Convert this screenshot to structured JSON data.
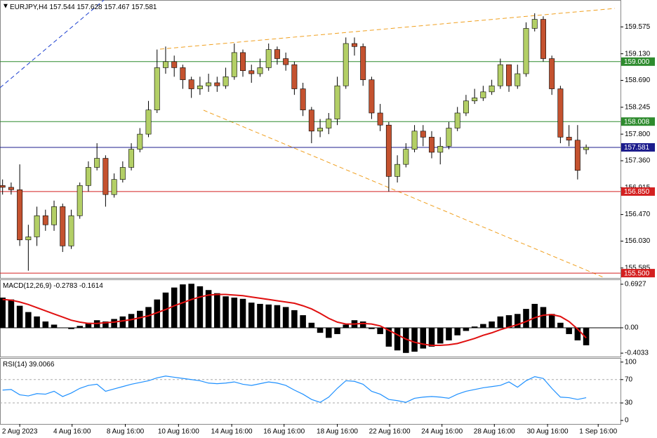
{
  "chart_data": [
    {
      "type": "candlestick",
      "symbol": "EURJPY,H4",
      "open": [
        156.95,
        156.92,
        156.88,
        156.05,
        156.1,
        156.45,
        156.3,
        156.6,
        155.95,
        156.45,
        156.95,
        157.25,
        157.4,
        156.8,
        157.05,
        157.25,
        157.55,
        157.8,
        158.2,
        158.9,
        159.0,
        158.9,
        158.7,
        158.55,
        158.6,
        158.65,
        158.6,
        158.75,
        159.15,
        158.85,
        158.8,
        158.9,
        159.2,
        159.05,
        158.95,
        158.55,
        158.2,
        157.85,
        157.9,
        158.05,
        158.6,
        159.3,
        159.25,
        158.7,
        158.15,
        157.95,
        157.1,
        157.3,
        157.55,
        157.85,
        157.75,
        157.5,
        157.6,
        157.9,
        158.15,
        158.35,
        158.4,
        158.5,
        158.6,
        158.95,
        158.6,
        158.8,
        159.55,
        159.7,
        159.05,
        158.55,
        157.75,
        157.7,
        157.544
      ],
      "high": [
        157.05,
        157.0,
        157.3,
        156.3,
        156.6,
        156.55,
        156.7,
        156.65,
        156.55,
        157.0,
        157.35,
        157.65,
        157.45,
        157.15,
        157.35,
        157.65,
        157.9,
        158.35,
        159.2,
        159.25,
        159.1,
        158.95,
        158.75,
        158.75,
        158.8,
        158.75,
        158.9,
        159.3,
        159.2,
        158.95,
        159.05,
        159.3,
        159.25,
        159.15,
        159.0,
        158.65,
        158.25,
        158.05,
        158.15,
        158.75,
        159.4,
        159.4,
        159.3,
        158.75,
        158.3,
        158.0,
        157.45,
        157.65,
        157.95,
        157.95,
        157.85,
        157.75,
        158.0,
        158.25,
        158.45,
        158.55,
        158.6,
        158.7,
        159.05,
        158.95,
        158.95,
        159.65,
        159.8,
        159.75,
        159.1,
        158.6,
        157.95,
        157.95,
        157.628
      ],
      "low": [
        156.8,
        156.8,
        155.95,
        155.54,
        155.95,
        156.2,
        156.2,
        155.85,
        155.9,
        156.4,
        156.85,
        157.2,
        156.6,
        156.75,
        157.0,
        157.2,
        157.5,
        157.75,
        158.15,
        158.8,
        158.75,
        158.55,
        158.4,
        158.45,
        158.5,
        158.5,
        158.55,
        158.7,
        158.75,
        158.65,
        158.75,
        158.85,
        158.95,
        158.85,
        158.45,
        158.1,
        157.65,
        157.75,
        157.8,
        157.95,
        158.55,
        159.1,
        158.6,
        158.05,
        157.85,
        156.85,
        157.0,
        157.25,
        157.5,
        157.6,
        157.4,
        157.3,
        157.55,
        157.85,
        158.1,
        158.3,
        158.35,
        158.45,
        158.55,
        158.5,
        158.55,
        158.75,
        159.5,
        159.0,
        158.45,
        157.65,
        157.6,
        157.05,
        157.467
      ],
      "close": [
        156.92,
        156.88,
        156.05,
        156.1,
        156.45,
        156.3,
        156.6,
        155.95,
        156.45,
        156.95,
        157.25,
        157.4,
        156.8,
        157.05,
        157.25,
        157.55,
        157.8,
        158.2,
        158.9,
        159.0,
        158.9,
        158.7,
        158.55,
        158.6,
        158.65,
        158.6,
        158.75,
        159.15,
        158.85,
        158.8,
        158.9,
        159.2,
        159.05,
        158.95,
        158.55,
        158.2,
        157.85,
        157.9,
        158.05,
        158.6,
        159.3,
        159.25,
        158.7,
        158.15,
        157.95,
        157.1,
        157.3,
        157.55,
        157.85,
        157.75,
        157.5,
        157.6,
        157.9,
        158.15,
        158.35,
        158.4,
        158.5,
        158.6,
        158.95,
        158.6,
        158.8,
        159.55,
        159.7,
        159.05,
        158.55,
        157.75,
        157.7,
        157.2,
        157.581
      ],
      "up_color": "#b3cf66",
      "down_color": "#c4522f",
      "xlim": [
        -0.3,
        72
      ],
      "ylim": [
        155.42,
        160.02
      ],
      "yticks": [
        159.575,
        {
          "value": 159.13,
          "label": "159.130"
        },
        {
          "value": 158.69,
          "label": "158.690"
        },
        158.245,
        {
          "value": 157.8,
          "label": "157.800"
        },
        {
          "value": 157.36,
          "label": "157.360"
        },
        156.915,
        {
          "value": 156.47,
          "label": "156.470"
        },
        {
          "value": 156.03,
          "label": "156.030"
        },
        155.585
      ],
      "levels": [
        {
          "value": 159,
          "label": "159.000",
          "color": "#2e8b2e"
        },
        {
          "value": 158.008,
          "color": "#2e8b2e"
        },
        {
          "value": 157.581,
          "color": "#1c1c8c"
        },
        {
          "value": 156.85,
          "label": "156.850",
          "color": "#d42020"
        },
        {
          "value": 155.5,
          "label": "155.500",
          "color": "#d42020"
        }
      ],
      "xticks": [
        {
          "value": 2.0,
          "label": "2 Aug 2023"
        },
        {
          "value": 8.1,
          "label": "4 Aug 16:00"
        },
        {
          "value": 14.3,
          "label": "8 Aug 16:00"
        },
        {
          "value": 20.5,
          "label": "10 Aug 16:00"
        },
        {
          "value": 26.7,
          "label": "14 Aug 16:00"
        },
        {
          "value": 32.8,
          "label": "16 Aug 16:00"
        },
        {
          "value": 39.0,
          "label": "18 Aug 16:00"
        },
        {
          "value": 45.1,
          "label": "22 Aug 16:00"
        },
        {
          "value": 51.2,
          "label": "24 Aug 16:00"
        },
        {
          "value": 57.3,
          "label": "28 Aug 16:00"
        },
        {
          "value": 63.5,
          "label": "30 Aug 16:00"
        },
        {
          "value": 69.4,
          "label": "1 Sep 16:00"
        }
      ]
    },
    {
      "type": "macd",
      "title": "MACD(12,26,9)",
      "histogram": [
        0.48,
        0.45,
        0.35,
        0.25,
        0.18,
        0.1,
        0.05,
        0.0,
        -0.02,
        0.03,
        0.08,
        0.12,
        0.1,
        0.14,
        0.18,
        0.22,
        0.27,
        0.33,
        0.45,
        0.56,
        0.64,
        0.69,
        0.7,
        0.66,
        0.6,
        0.55,
        0.5,
        0.48,
        0.46,
        0.4,
        0.38,
        0.37,
        0.36,
        0.33,
        0.28,
        0.2,
        0.08,
        -0.08,
        -0.16,
        -0.1,
        0.05,
        0.12,
        0.1,
        -0.02,
        -0.1,
        -0.3,
        -0.36,
        -0.4,
        -0.38,
        -0.33,
        -0.3,
        -0.25,
        -0.2,
        -0.12,
        -0.05,
        0.02,
        0.06,
        0.1,
        0.18,
        0.2,
        0.22,
        0.3,
        0.38,
        0.33,
        0.22,
        0.08,
        -0.1,
        -0.2,
        -0.2783
      ],
      "signal": [
        0.45,
        0.44,
        0.41,
        0.37,
        0.32,
        0.27,
        0.22,
        0.17,
        0.12,
        0.09,
        0.07,
        0.07,
        0.08,
        0.09,
        0.11,
        0.13,
        0.16,
        0.19,
        0.24,
        0.29,
        0.35,
        0.4,
        0.45,
        0.49,
        0.52,
        0.53,
        0.53,
        0.52,
        0.51,
        0.49,
        0.47,
        0.45,
        0.43,
        0.41,
        0.39,
        0.35,
        0.3,
        0.23,
        0.15,
        0.09,
        0.06,
        0.06,
        0.07,
        0.06,
        0.03,
        -0.04,
        -0.11,
        -0.18,
        -0.23,
        -0.26,
        -0.28,
        -0.28,
        -0.27,
        -0.25,
        -0.21,
        -0.17,
        -0.12,
        -0.08,
        -0.03,
        0.01,
        0.05,
        0.1,
        0.16,
        0.2,
        0.21,
        0.18,
        0.1,
        -0.02,
        -0.1614
      ],
      "color": "#000000",
      "signal_color": "#e01010",
      "xlim": [
        -0.3,
        72
      ],
      "ylim": [
        -0.458,
        0.77
      ],
      "yticks": [
        0.6927,
        {
          "value": 0,
          "label": "0.00"
        },
        -0.4033
      ]
    },
    {
      "type": "line",
      "title": "RSI(14)",
      "values": [
        52,
        53,
        44,
        42,
        46,
        45,
        50,
        41,
        47,
        55,
        60,
        62,
        50,
        54,
        58,
        62,
        65,
        68,
        73,
        76,
        74,
        72,
        70,
        68,
        64,
        63,
        64,
        66,
        62,
        60,
        63,
        66,
        64,
        60,
        52,
        45,
        36,
        31,
        40,
        55,
        68,
        67,
        62,
        50,
        45,
        36,
        34,
        31,
        38,
        40,
        41,
        40,
        38,
        45,
        50,
        53,
        56,
        58,
        60,
        66,
        57,
        68,
        75,
        72,
        55,
        40,
        39,
        36,
        39.0066
      ],
      "color": "#1e90ff",
      "xlim": [
        -0.3,
        72
      ],
      "ylim": [
        -6,
        107
      ],
      "yticks": [
        100,
        70,
        30,
        0
      ],
      "levels": [
        70,
        30
      ]
    }
  ]
}
